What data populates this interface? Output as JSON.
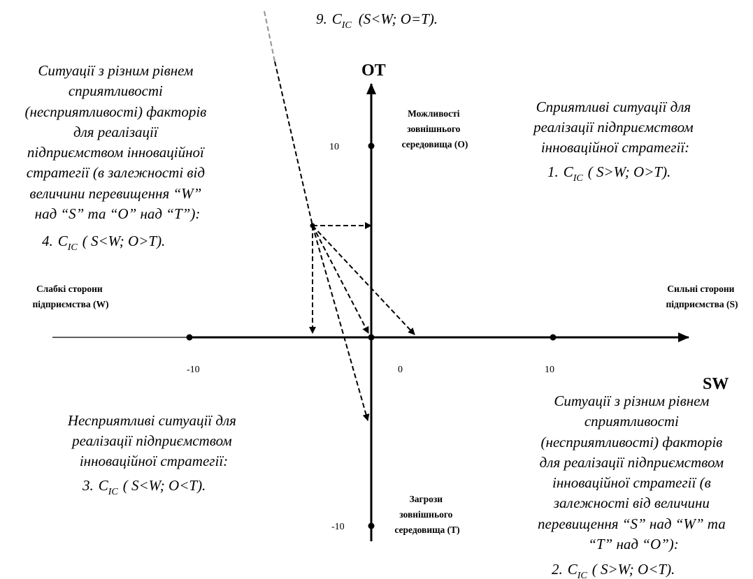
{
  "axes": {
    "vertical_label": "OT",
    "horizontal_label": "SW",
    "top_label": [
      "Можливості",
      "зовнішнього",
      "середовища (O)"
    ],
    "bottom_label": [
      "Загрози",
      "зовнішнього",
      "середовища (T)"
    ],
    "left_label": [
      "Слабкі сторони",
      "підприємства (W)"
    ],
    "right_label": [
      "Сильні сторони",
      "підприємства (S)"
    ],
    "ticks": {
      "x_neg": "-10",
      "x_zero": "0",
      "x_pos": "10",
      "y_pos": "10",
      "y_neg": "-10"
    }
  },
  "quadrants": {
    "top_left": {
      "lines": [
        "Ситуації з різним рівнем",
        "сприятливості",
        "(несприятливості) факторів",
        "для  реалізації",
        "підприємством інноваційної",
        "стратегії (в залежності від",
        "величини перевищення “W”",
        "над “S” та “O” над “T”):"
      ],
      "formula": {
        "num": "4.",
        "c": "C",
        "sub": "IC",
        "cond": "( S<W; O>T)."
      }
    },
    "top_right": {
      "lines": [
        "Сприятливі ситуації для",
        "реалізації підприємством",
        "інноваційної стратегії:"
      ],
      "formula": {
        "num": "1.",
        "c": "C",
        "sub": "IC",
        "cond": "( S>W; O>T)."
      }
    },
    "bottom_left": {
      "lines": [
        "Несприятливі ситуації для",
        "реалізації підприємством",
        "інноваційної стратегії:"
      ],
      "formula": {
        "num": "3.",
        "c": "C",
        "sub": "IC",
        "cond": "( S<W; O<T)."
      }
    },
    "bottom_right": {
      "lines": [
        "Ситуації з різним рівнем",
        "сприятливості",
        "(несприятливості) факторів",
        "для  реалізації підприємством",
        "інноваційної стратегії (в",
        "залежності від величини",
        "перевищення “S” над “W” та",
        "“T” над “O”):"
      ],
      "formula": {
        "num": "2.",
        "c": "C",
        "sub": "IC",
        "cond": "( S>W; O<T)."
      }
    }
  },
  "top_formula": {
    "num": "9.",
    "c": "C",
    "sub": "IC",
    "cond": "(S<W; O=T)."
  }
}
